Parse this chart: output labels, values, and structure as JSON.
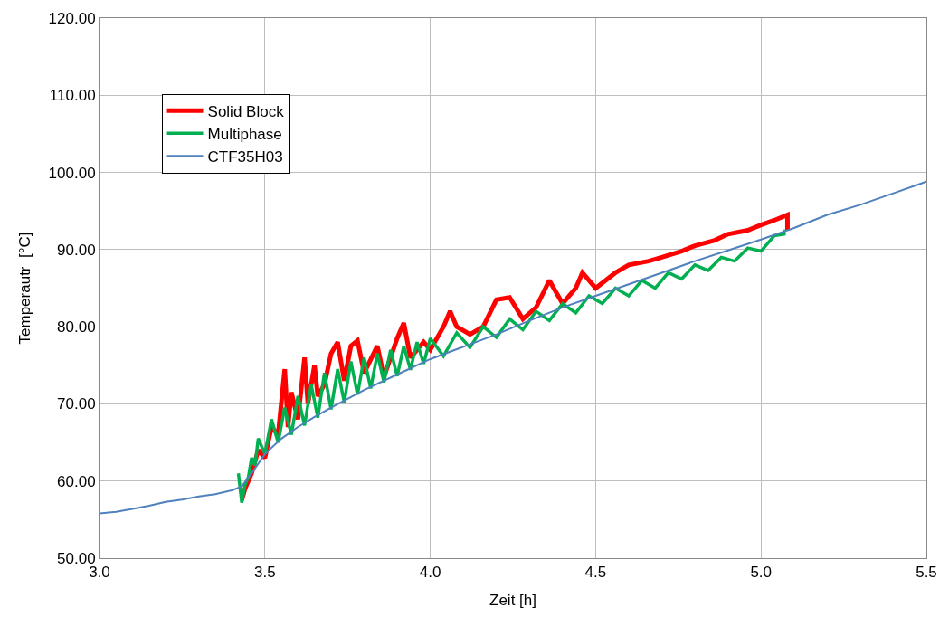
{
  "chart_data": {
    "type": "line",
    "xlabel": "Zeit [h]",
    "ylabel": "Temperautr  [°C]",
    "xlim": [
      3.0,
      5.5
    ],
    "ylim": [
      50,
      120
    ],
    "xticks": [
      {
        "value": 3.0,
        "label": "3.0"
      },
      {
        "value": 3.5,
        "label": "3.5"
      },
      {
        "value": 4.0,
        "label": "4.0"
      },
      {
        "value": 4.5,
        "label": "4.5"
      },
      {
        "value": 5.0,
        "label": "5.0"
      },
      {
        "value": 5.5,
        "label": "5.5"
      }
    ],
    "yticks": [
      {
        "value": 50,
        "label": "50.00"
      },
      {
        "value": 60,
        "label": "60.00"
      },
      {
        "value": 70,
        "label": "70.00"
      },
      {
        "value": 80,
        "label": "80.00"
      },
      {
        "value": 90,
        "label": "90.00"
      },
      {
        "value": 100,
        "label": "100.00"
      },
      {
        "value": 110,
        "label": "110.00"
      },
      {
        "value": 120,
        "label": "120.00"
      }
    ],
    "grid": true,
    "legend": "top left",
    "marker": "none",
    "line_style": "solid",
    "series": [
      {
        "name": "Solid Block",
        "color": "#ff0000",
        "x": [
          3.43,
          3.44,
          3.46,
          3.48,
          3.5,
          3.52,
          3.54,
          3.56,
          3.57,
          3.58,
          3.6,
          3.62,
          3.63,
          3.65,
          3.66,
          3.68,
          3.7,
          3.72,
          3.74,
          3.76,
          3.78,
          3.8,
          3.84,
          3.86,
          3.9,
          3.92,
          3.94,
          3.98,
          4.0,
          4.04,
          4.06,
          4.08,
          4.12,
          4.16,
          4.2,
          4.24,
          4.28,
          4.32,
          4.36,
          4.4,
          4.44,
          4.46,
          4.5,
          4.56,
          4.6,
          4.66,
          4.7,
          4.76,
          4.8,
          4.86,
          4.9,
          4.96,
          5.0,
          5.04,
          5.08,
          5.08
        ],
        "values": [
          57.5,
          59.0,
          61.0,
          64.0,
          63.0,
          67.0,
          66.0,
          74.5,
          67.0,
          71.5,
          68.0,
          76.0,
          70.0,
          75.0,
          71.0,
          72.5,
          76.5,
          78.0,
          73.0,
          77.5,
          78.2,
          74.0,
          77.5,
          73.5,
          78.5,
          80.5,
          76.0,
          78.0,
          77.0,
          80.0,
          82.0,
          80.0,
          79.0,
          80.0,
          83.5,
          83.8,
          81.0,
          82.5,
          86.0,
          83.0,
          85.0,
          87.0,
          85.0,
          87.0,
          88.0,
          88.5,
          89.0,
          89.8,
          90.5,
          91.2,
          92.0,
          92.5,
          93.2,
          93.8,
          94.5,
          92.5
        ]
      },
      {
        "name": "Multiphase",
        "color": "#00b050",
        "x": [
          3.42,
          3.43,
          3.44,
          3.45,
          3.46,
          3.47,
          3.48,
          3.5,
          3.52,
          3.54,
          3.56,
          3.58,
          3.6,
          3.62,
          3.64,
          3.66,
          3.68,
          3.7,
          3.72,
          3.74,
          3.76,
          3.78,
          3.8,
          3.82,
          3.84,
          3.86,
          3.88,
          3.9,
          3.92,
          3.94,
          3.96,
          3.98,
          4.0,
          4.04,
          4.08,
          4.12,
          4.16,
          4.2,
          4.24,
          4.28,
          4.32,
          4.36,
          4.4,
          4.44,
          4.48,
          4.52,
          4.56,
          4.6,
          4.64,
          4.68,
          4.72,
          4.76,
          4.8,
          4.84,
          4.88,
          4.92,
          4.96,
          5.0,
          5.04,
          5.07,
          5.07
        ],
        "values": [
          61.0,
          57.2,
          59.5,
          60.5,
          63.0,
          62.0,
          65.5,
          63.5,
          68.0,
          65.0,
          69.5,
          66.0,
          71.0,
          67.2,
          72.5,
          68.2,
          74.0,
          69.3,
          74.5,
          70.2,
          75.5,
          71.2,
          76.0,
          72.0,
          76.5,
          72.8,
          77.0,
          73.6,
          77.5,
          74.4,
          78.0,
          75.2,
          78.5,
          76.2,
          79.2,
          77.3,
          80.0,
          78.6,
          81.0,
          79.6,
          82.0,
          80.8,
          83.0,
          81.8,
          84.0,
          83.0,
          85.0,
          84.0,
          86.0,
          85.0,
          87.0,
          86.2,
          88.0,
          87.3,
          89.0,
          88.5,
          90.2,
          89.8,
          91.8,
          92.0,
          92.6
        ]
      },
      {
        "name": "CTF35H03",
        "color": "#4f81bd",
        "x": [
          3.0,
          3.05,
          3.1,
          3.15,
          3.2,
          3.25,
          3.3,
          3.35,
          3.4,
          3.43,
          3.46,
          3.5,
          3.55,
          3.6,
          3.65,
          3.7,
          3.8,
          3.9,
          4.0,
          4.1,
          4.2,
          4.3,
          4.4,
          4.5,
          4.6,
          4.7,
          4.8,
          4.9,
          5.0,
          5.1,
          5.2,
          5.3,
          5.4,
          5.5
        ],
        "values": [
          55.8,
          56.0,
          56.4,
          56.8,
          57.3,
          57.6,
          58.0,
          58.3,
          58.8,
          59.3,
          61.0,
          63.5,
          65.5,
          67.0,
          68.3,
          69.5,
          71.8,
          73.8,
          75.8,
          77.4,
          79.0,
          80.8,
          82.5,
          84.0,
          85.5,
          87.0,
          88.5,
          89.9,
          91.3,
          92.8,
          94.5,
          95.8,
          97.3,
          98.8
        ]
      }
    ]
  }
}
